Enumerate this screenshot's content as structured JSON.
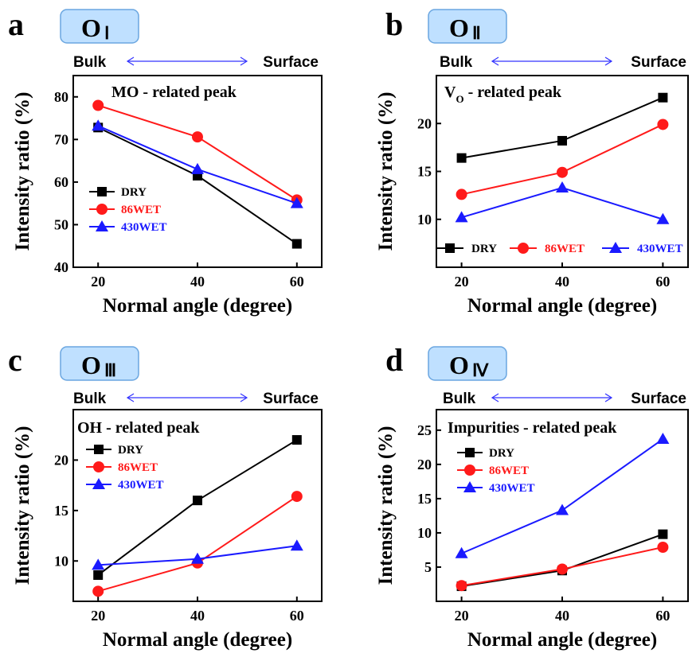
{
  "colors": {
    "DRY": "#000000",
    "86WET": "#ff1a1a",
    "430WET": "#1a1aff",
    "badge_fill": "#bfe0ff",
    "badge_stroke": "#6aa6e0",
    "arrow": "#3333ff"
  },
  "chart_data": [
    {
      "id": "a",
      "type": "line",
      "letter": "a",
      "badge": {
        "base": "O",
        "sub": "Ⅰ"
      },
      "bulk_label": "Bulk",
      "surface_label": "Surface",
      "annotation": {
        "main": "MO - related peak"
      },
      "xlabel": "Normal angle (degree)",
      "ylabel": "Intensity ratio (%)",
      "x": [
        20,
        40,
        60
      ],
      "xticks": [
        "20",
        "40",
        "60"
      ],
      "ylim": [
        40,
        85
      ],
      "yticks": [
        40,
        50,
        60,
        70,
        80
      ],
      "legend_layout": "column",
      "series": [
        {
          "name": "DRY",
          "marker": "square",
          "values": [
            72.8,
            61.5,
            45.5
          ]
        },
        {
          "name": "86WET",
          "marker": "circle",
          "values": [
            78.0,
            70.6,
            55.8
          ]
        },
        {
          "name": "430WET",
          "marker": "triangle",
          "values": [
            73.2,
            63.0,
            55.0
          ]
        }
      ]
    },
    {
      "id": "b",
      "type": "line",
      "letter": "b",
      "badge": {
        "base": "O",
        "sub": "Ⅱ"
      },
      "bulk_label": "Bulk",
      "surface_label": "Surface",
      "annotation": {
        "main": "V",
        "sub": "O",
        "rest": " - related peak"
      },
      "xlabel": "Normal angle (degree)",
      "ylabel": "Intensity ratio (%)",
      "x": [
        20,
        40,
        60
      ],
      "xticks": [
        "20",
        "40",
        "60"
      ],
      "ylim": [
        5,
        25
      ],
      "yticks": [
        10,
        15,
        20
      ],
      "legend_layout": "row",
      "series": [
        {
          "name": "DRY",
          "marker": "square",
          "values": [
            16.4,
            18.2,
            22.7
          ]
        },
        {
          "name": "86WET",
          "marker": "circle",
          "values": [
            12.6,
            14.9,
            19.9
          ]
        },
        {
          "name": "430WET",
          "marker": "triangle",
          "values": [
            10.2,
            13.3,
            10.0
          ]
        }
      ]
    },
    {
      "id": "c",
      "type": "line",
      "letter": "c",
      "badge": {
        "base": "O",
        "sub": "Ⅲ"
      },
      "bulk_label": "Bulk",
      "surface_label": "Surface",
      "annotation": {
        "main": "OH - related peak"
      },
      "xlabel": "Normal angle (degree)",
      "ylabel": "Intensity ratio (%)",
      "x": [
        20,
        40,
        60
      ],
      "xticks": [
        "20",
        "40",
        "60"
      ],
      "ylim": [
        6,
        25
      ],
      "yticks": [
        10,
        15,
        20
      ],
      "legend_layout": "column",
      "series": [
        {
          "name": "DRY",
          "marker": "square",
          "values": [
            8.6,
            16.0,
            22.0
          ]
        },
        {
          "name": "86WET",
          "marker": "circle",
          "values": [
            7.0,
            9.8,
            16.4
          ]
        },
        {
          "name": "430WET",
          "marker": "triangle",
          "values": [
            9.6,
            10.2,
            11.5
          ]
        }
      ]
    },
    {
      "id": "d",
      "type": "line",
      "letter": "d",
      "badge": {
        "base": "O",
        "sub": "Ⅳ"
      },
      "bulk_label": "Bulk",
      "surface_label": "Surface",
      "annotation": {
        "main": "Impurities - related peak"
      },
      "xlabel": "Normal angle (degree)",
      "ylabel": "Intensity ratio (%)",
      "x": [
        20,
        40,
        60
      ],
      "xticks": [
        "20",
        "40",
        "60"
      ],
      "ylim": [
        0,
        28
      ],
      "yticks": [
        5,
        10,
        15,
        20,
        25
      ],
      "legend_layout": "column",
      "series": [
        {
          "name": "DRY",
          "marker": "square",
          "values": [
            2.2,
            4.5,
            9.8
          ]
        },
        {
          "name": "86WET",
          "marker": "circle",
          "values": [
            2.3,
            4.7,
            7.9
          ]
        },
        {
          "name": "430WET",
          "marker": "triangle",
          "values": [
            7.0,
            13.3,
            23.7
          ]
        }
      ]
    }
  ]
}
